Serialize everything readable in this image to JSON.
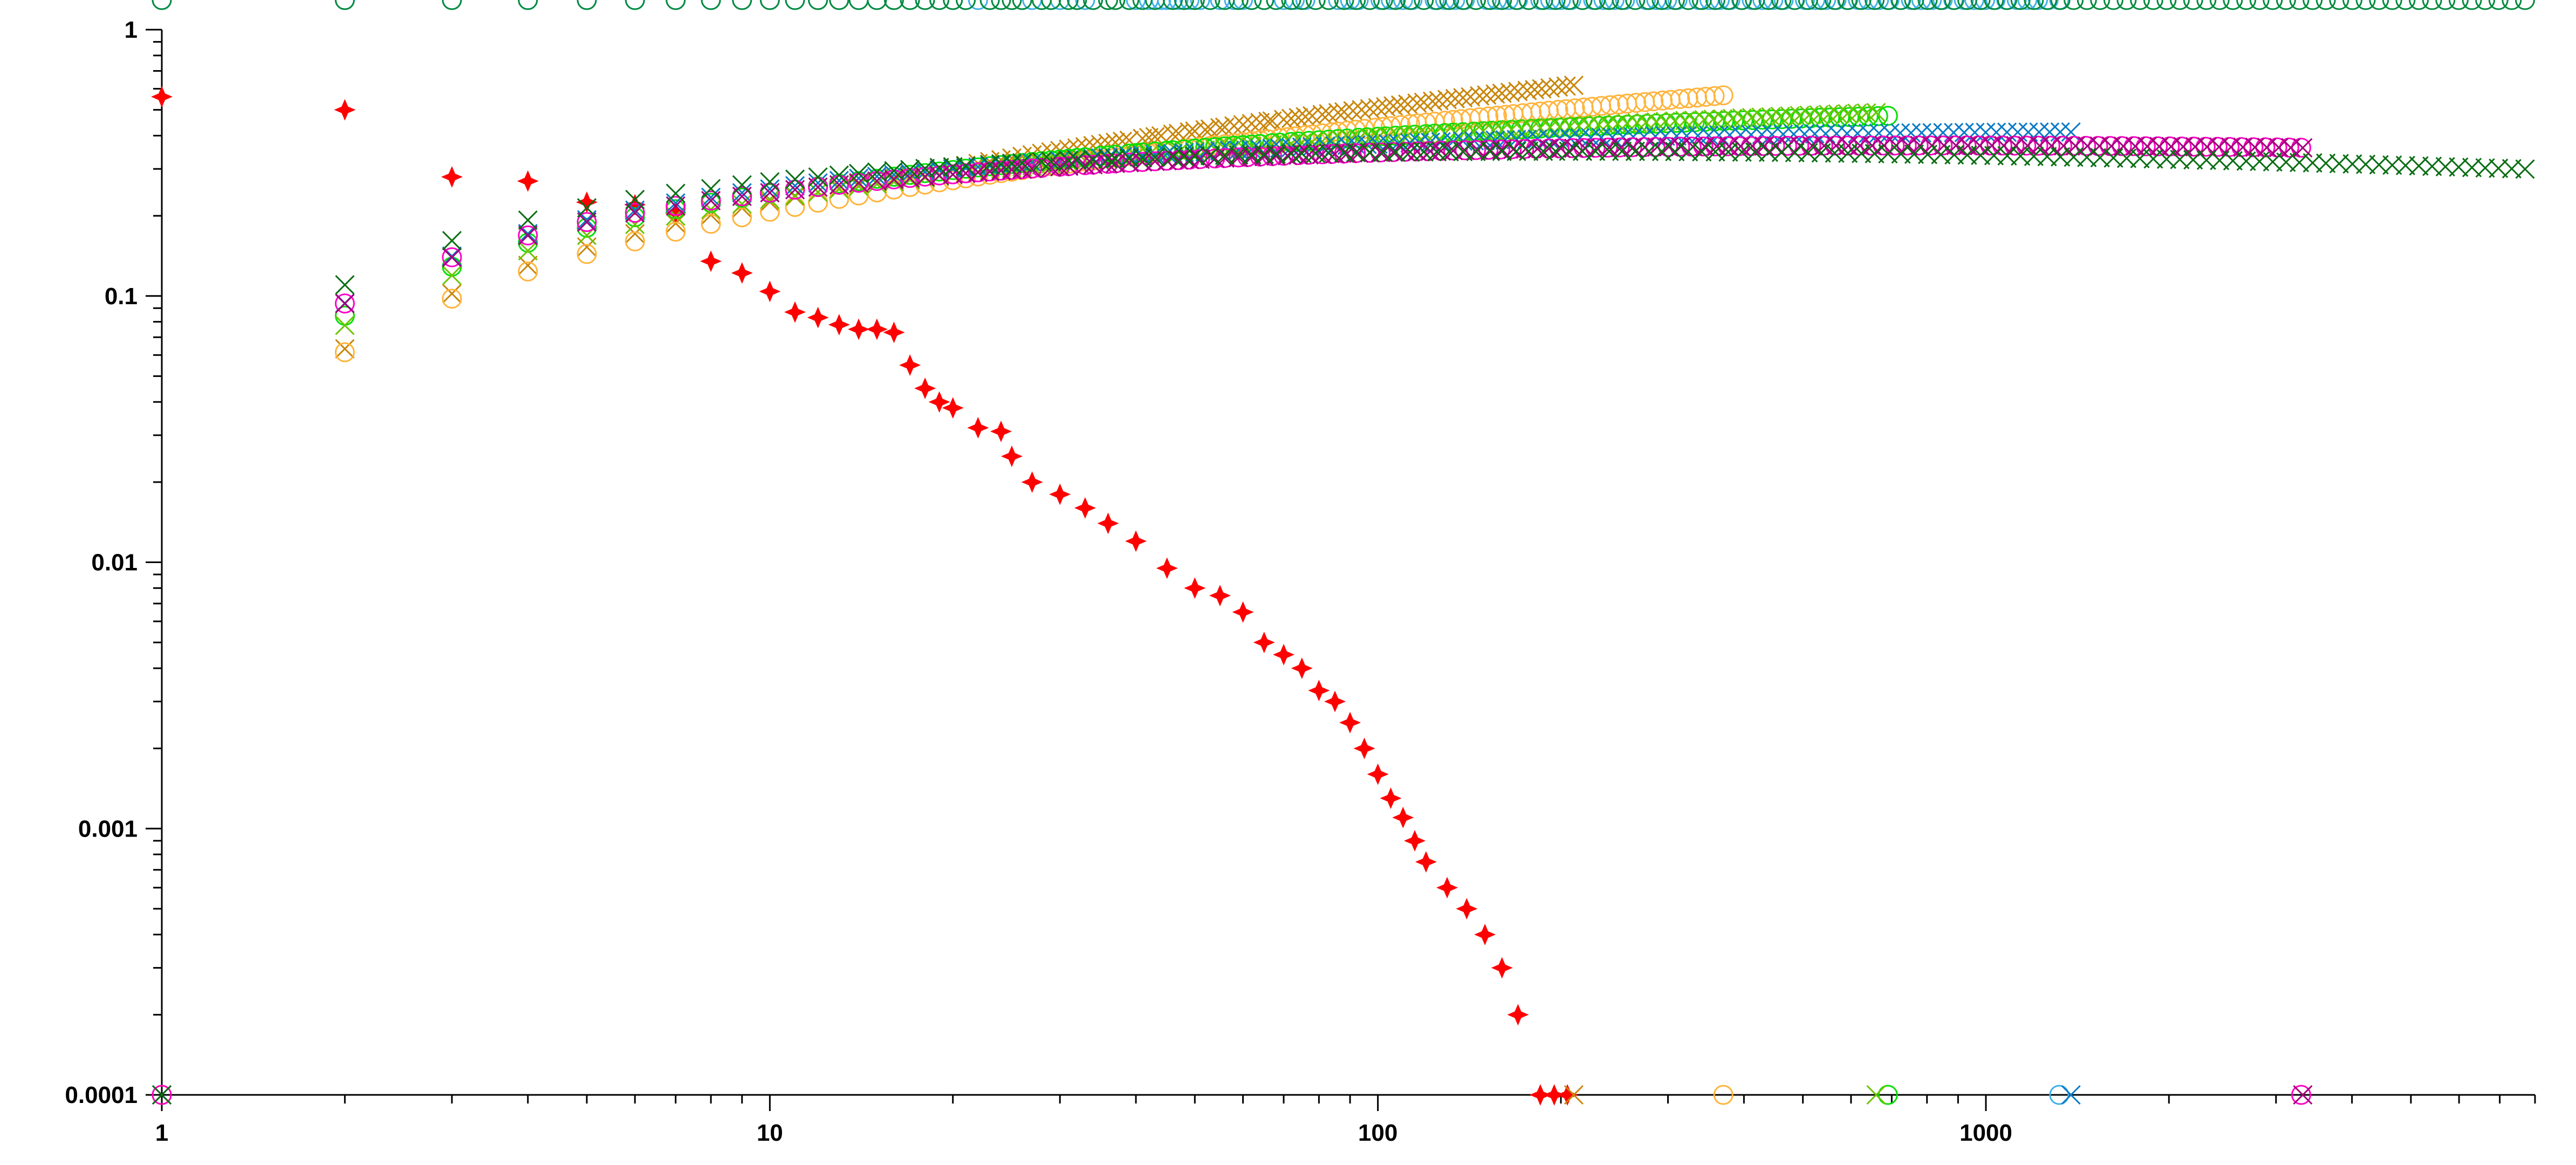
{
  "chart_data": {
    "type": "scatter",
    "title": "",
    "xlabel": "",
    "ylabel": "",
    "x_scale": "log",
    "y_scale": "log",
    "xlim": [
      1,
      8000
    ],
    "ylim": [
      0.0001,
      1
    ],
    "grid": false,
    "legend": "none",
    "x_ticks": [
      "1",
      "10",
      "100",
      "1000"
    ],
    "y_ticks": [
      "1",
      "0.1",
      "0.01",
      "0.001",
      "0.0001"
    ],
    "series": [
      {
        "color": "#ff0000",
        "marker": "star4",
        "N": 205,
        "points": [
          [
            1,
            0.56
          ],
          [
            2,
            0.5
          ],
          [
            3,
            0.28
          ],
          [
            4,
            0.27
          ],
          [
            5,
            0.225
          ],
          [
            6,
            0.22
          ],
          [
            7,
            0.205
          ],
          [
            8,
            0.135
          ],
          [
            9,
            0.122
          ],
          [
            10,
            0.104
          ],
          [
            11,
            0.087
          ],
          [
            12,
            0.083
          ],
          [
            13,
            0.078
          ],
          [
            14,
            0.075
          ],
          [
            15,
            0.075
          ],
          [
            16,
            0.073
          ],
          [
            17,
            0.055
          ],
          [
            18,
            0.045
          ],
          [
            19,
            0.04
          ],
          [
            20,
            0.038
          ],
          [
            22,
            0.032
          ],
          [
            24,
            0.031
          ],
          [
            25,
            0.025
          ],
          [
            27,
            0.02
          ],
          [
            30,
            0.018
          ],
          [
            33,
            0.016
          ],
          [
            36,
            0.014
          ],
          [
            40,
            0.012
          ],
          [
            45,
            0.0095
          ],
          [
            50,
            0.008
          ],
          [
            55,
            0.0075
          ],
          [
            60,
            0.0065
          ],
          [
            65,
            0.005
          ],
          [
            70,
            0.0045
          ],
          [
            75,
            0.004
          ],
          [
            80,
            0.0033
          ],
          [
            85,
            0.003
          ],
          [
            90,
            0.0025
          ],
          [
            95,
            0.002
          ],
          [
            100,
            0.0016
          ],
          [
            105,
            0.0013
          ],
          [
            110,
            0.0011
          ],
          [
            115,
            0.0009
          ],
          [
            120,
            0.00075
          ],
          [
            130,
            0.0006
          ],
          [
            140,
            0.0005
          ],
          [
            150,
            0.0004
          ],
          [
            160,
            0.0003
          ],
          [
            170,
            0.0002
          ],
          [
            185,
            0.0001
          ],
          [
            195,
            0.0001
          ],
          [
            205,
            0.0001
          ]
        ]
      },
      {
        "color": "#c8860a",
        "marker": "x",
        "N": 210,
        "a": 0.75
      },
      {
        "color": "#ffb43c",
        "marker": "circle",
        "N": 370,
        "a": 0.8
      },
      {
        "color": "#00e000",
        "marker": "circle",
        "N": 690,
        "a": 0.95
      },
      {
        "color": "#6cc400",
        "marker": "x",
        "N": 660,
        "a": 0.92
      },
      {
        "color": "#3fb0ea",
        "marker": "circle",
        "N": 1320,
        "a": 1.0
      },
      {
        "color": "#0a7ac6",
        "marker": "x",
        "N": 1380,
        "a": 1.02
      },
      {
        "color": "#ff00c8",
        "marker": "circle",
        "N": 3300,
        "a": 1.05
      },
      {
        "color": "#a0007a",
        "marker": "x",
        "N": 3320,
        "a": 1.05
      },
      {
        "color": "#008a3c",
        "marker": "circle",
        "N": 8100,
        "a": 1.0
      },
      {
        "color": "#0a6e14",
        "marker": "x",
        "N": 8100,
        "a": 1.12
      }
    ]
  }
}
